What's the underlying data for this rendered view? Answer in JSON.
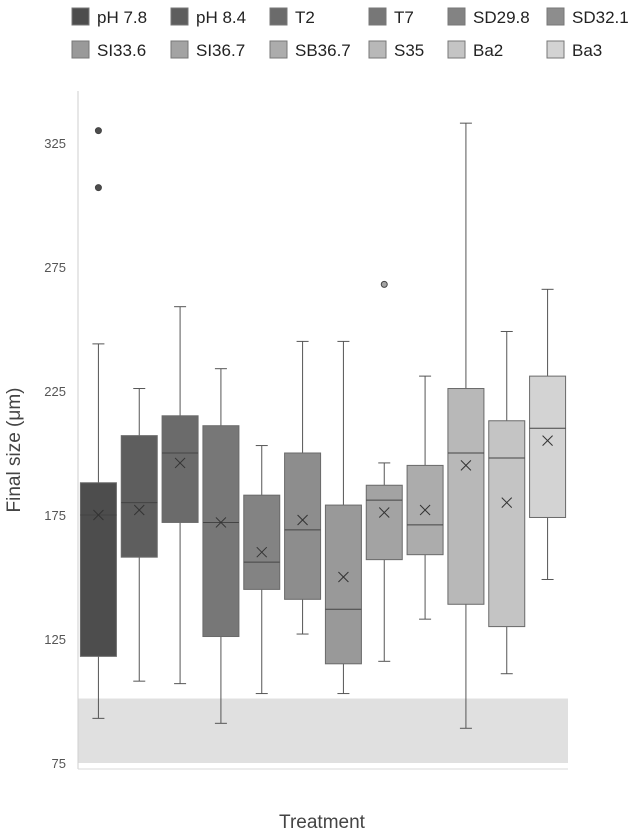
{
  "chart_data": {
    "type": "box",
    "xlabel": "Treatment",
    "ylabel": "Final size (μm)",
    "ylim": [
      75,
      350
    ],
    "yticks": [
      "75",
      "125",
      "175",
      "225",
      "275",
      "325"
    ],
    "legend_position": "top",
    "shaded_band": {
      "y_from": 75,
      "y_to": 101,
      "color": "#e0e0e0"
    },
    "series": [
      {
        "name": "pH 7.8",
        "color": "#4d4d4d",
        "whisker_low": 93,
        "q1": 118,
        "median": 175,
        "q3": 188,
        "whisker_high": 244,
        "mean": 175,
        "outliers": [
          330,
          307
        ]
      },
      {
        "name": "pH 8.4",
        "color": "#5e5e5e",
        "whisker_low": 108,
        "q1": 158,
        "median": 180,
        "q3": 207,
        "whisker_high": 226,
        "mean": 177,
        "outliers": []
      },
      {
        "name": "T2",
        "color": "#6b6b6b",
        "whisker_low": 107,
        "q1": 172,
        "median": 200,
        "q3": 215,
        "whisker_high": 259,
        "mean": 196,
        "outliers": []
      },
      {
        "name": "T7",
        "color": "#777777",
        "whisker_low": 91,
        "q1": 126,
        "median": 172,
        "q3": 211,
        "whisker_high": 234,
        "mean": 172,
        "outliers": []
      },
      {
        "name": "SD29.8",
        "color": "#838383",
        "whisker_low": 103,
        "q1": 145,
        "median": 156,
        "q3": 183,
        "whisker_high": 203,
        "mean": 160,
        "outliers": []
      },
      {
        "name": "SD32.1",
        "color": "#8d8d8d",
        "whisker_low": 127,
        "q1": 141,
        "median": 169,
        "q3": 200,
        "whisker_high": 245,
        "mean": 173,
        "outliers": []
      },
      {
        "name": "SI33.6",
        "color": "#999999",
        "whisker_low": 103,
        "q1": 115,
        "median": 137,
        "q3": 179,
        "whisker_high": 245,
        "mean": 150,
        "outliers": []
      },
      {
        "name": "SI36.7",
        "color": "#a3a3a3",
        "whisker_low": 116,
        "q1": 157,
        "median": 181,
        "q3": 187,
        "whisker_high": 196,
        "mean": 176,
        "outliers": [
          268
        ]
      },
      {
        "name": "SB36.7",
        "color": "#acacac",
        "whisker_low": 133,
        "q1": 159,
        "median": 171,
        "q3": 195,
        "whisker_high": 231,
        "mean": 177,
        "outliers": []
      },
      {
        "name": "S35",
        "color": "#b8b8b8",
        "whisker_low": 89,
        "q1": 139,
        "median": 200,
        "q3": 226,
        "whisker_high": 333,
        "mean": 195,
        "outliers": []
      },
      {
        "name": "Ba2",
        "color": "#c4c4c4",
        "whisker_low": 111,
        "q1": 130,
        "median": 198,
        "q3": 213,
        "whisker_high": 249,
        "mean": 180,
        "outliers": []
      },
      {
        "name": "Ba3",
        "color": "#d3d3d3",
        "whisker_low": 149,
        "q1": 174,
        "median": 210,
        "q3": 231,
        "whisker_high": 266,
        "mean": 205,
        "outliers": []
      }
    ]
  }
}
